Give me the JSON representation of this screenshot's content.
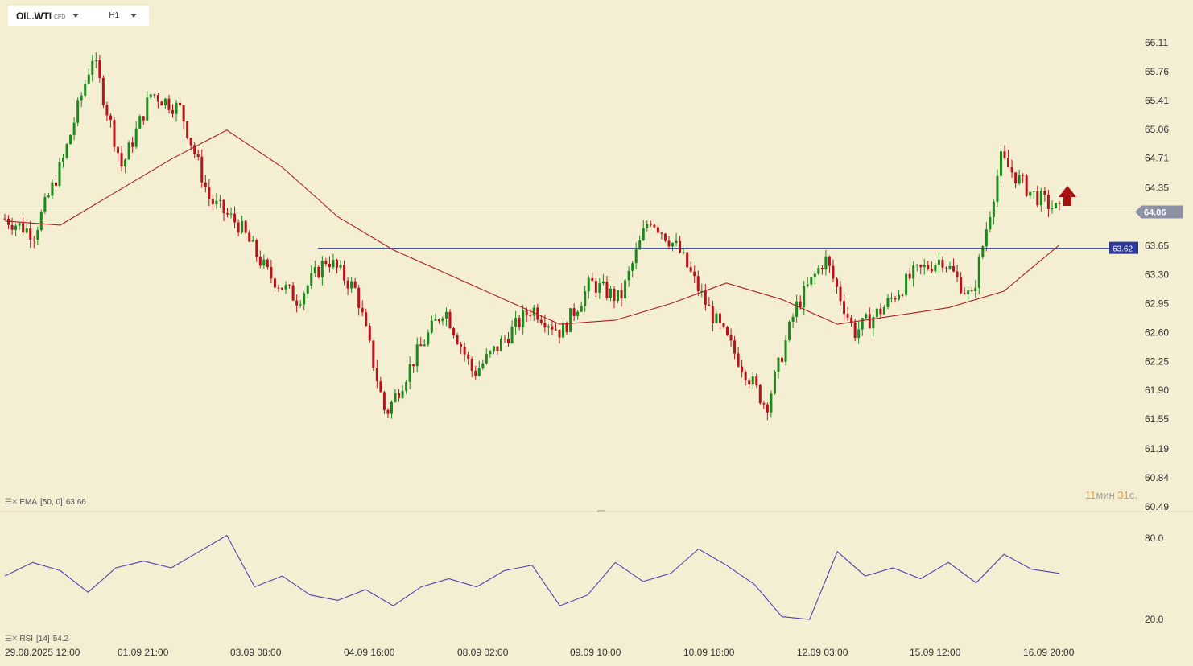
{
  "toolbar": {
    "symbol": "OIL.WTI",
    "symbol_tag": "CFD",
    "timeframe": "H1"
  },
  "price_axis": {
    "labels": [
      "66.11",
      "65.76",
      "65.41",
      "65.06",
      "64.71",
      "64.35",
      "64.06",
      "63.65",
      "63.30",
      "62.95",
      "62.60",
      "62.25",
      "61.90",
      "61.55",
      "61.19",
      "60.84",
      "60.49"
    ],
    "current_price": "64.06",
    "line_price": "63.62",
    "current_color": "#8c91a5",
    "line_color": "#2d3a9b"
  },
  "indicators": {
    "ema_label": "EMA",
    "ema_params": "[50, 0]",
    "ema_value": "63.66",
    "rsi_label": "RSI",
    "rsi_params": "[14]",
    "rsi_value": "54.2",
    "rsi_levels": [
      "80.0",
      "20.0"
    ]
  },
  "timer": {
    "minutes": "11",
    "min_unit": "мин",
    "seconds": "31",
    "sec_unit": "с."
  },
  "time_axis": [
    "29.08.2025   12:00",
    "01.09  21:00",
    "03.09  08:00",
    "04.09  16:00",
    "08.09  02:00",
    "09.09  10:00",
    "10.09  18:00",
    "12.09  03:00",
    "15.09  12:00",
    "16.09  20:00"
  ],
  "colors": {
    "up": "#1a8a1a",
    "down": "#b8131a",
    "ema": "#a82020",
    "rsi": "#5540b0",
    "arrow": "#a81010",
    "background": "#f4eed3"
  },
  "chart_data": [
    {
      "type": "candlestick",
      "instrument": "OIL.WTI",
      "timeframe": "H1",
      "y_range": [
        60.49,
        66.11
      ],
      "x_labels": [
        "29.08.2025 12:00",
        "01.09 21:00",
        "03.09 08:00",
        "04.09 16:00",
        "08.09 02:00",
        "09.09 10:00",
        "10.09 18:00",
        "12.09 03:00",
        "15.09 12:00",
        "16.09 20:00"
      ],
      "close_path": [
        {
          "x": "29.08.2025 12:00",
          "y": 63.98
        },
        {
          "x": "01.09 21:00",
          "y": 63.8
        },
        {
          "x": "01.09 21:00",
          "y": 64.7
        },
        {
          "x": "01.09 21:00",
          "y": 65.95
        },
        {
          "x": "01.09 21:00",
          "y": 64.6
        },
        {
          "x": "01.09 21:00",
          "y": 65.5
        },
        {
          "x": "03.09 08:00",
          "y": 65.3
        },
        {
          "x": "03.09 08:00",
          "y": 64.2
        },
        {
          "x": "03.09 08:00",
          "y": 63.9
        },
        {
          "x": "04.09 16:00",
          "y": 63.3
        },
        {
          "x": "04.09 16:00",
          "y": 63.0
        },
        {
          "x": "04.09 16:00",
          "y": 63.5
        },
        {
          "x": "04.09 16:00",
          "y": 63.1
        },
        {
          "x": "08.09 02:00",
          "y": 61.6
        },
        {
          "x": "08.09 02:00",
          "y": 62.3
        },
        {
          "x": "08.09 02:00",
          "y": 62.9
        },
        {
          "x": "08.09 02:00",
          "y": 62.1
        },
        {
          "x": "08.09 02:00",
          "y": 62.5
        },
        {
          "x": "09.09 10:00",
          "y": 62.9
        },
        {
          "x": "09.09 10:00",
          "y": 62.6
        },
        {
          "x": "09.09 10:00",
          "y": 63.2
        },
        {
          "x": "10.09 18:00",
          "y": 63.0
        },
        {
          "x": "10.09 18:00",
          "y": 64.0
        },
        {
          "x": "10.09 18:00",
          "y": 63.6
        },
        {
          "x": "10.09 18:00",
          "y": 62.9
        },
        {
          "x": "10.09 18:00",
          "y": 62.3
        },
        {
          "x": "12.09 03:00",
          "y": 61.7
        },
        {
          "x": "12.09 03:00",
          "y": 62.9
        },
        {
          "x": "12.09 03:00",
          "y": 63.5
        },
        {
          "x": "12.09 03:00",
          "y": 62.6
        },
        {
          "x": "15.09 12:00",
          "y": 62.9
        },
        {
          "x": "15.09 12:00",
          "y": 63.3
        },
        {
          "x": "15.09 12:00",
          "y": 63.5
        },
        {
          "x": "15.09 12:00",
          "y": 63.0
        },
        {
          "x": "16.09 20:00",
          "y": 64.7
        },
        {
          "x": "16.09 20:00",
          "y": 64.3
        },
        {
          "x": "16.09 20:00",
          "y": 64.06
        }
      ],
      "ema50": {
        "name": "EMA [50, 0]",
        "last": 63.66,
        "values": [
          63.95,
          63.9,
          64.3,
          64.7,
          65.05,
          64.6,
          64.0,
          63.6,
          63.3,
          63.0,
          62.7,
          62.75,
          62.95,
          63.2,
          63.0,
          62.7,
          62.8,
          62.9,
          63.1,
          63.66
        ]
      },
      "horizontal_lines": [
        64.06,
        63.62
      ],
      "annotation": "up-arrow"
    },
    {
      "type": "line",
      "name": "RSI [14]",
      "last": 54.2,
      "levels": [
        80.0,
        20.0
      ],
      "values": [
        52,
        62,
        56,
        40,
        58,
        63,
        58,
        70,
        82,
        44,
        52,
        38,
        34,
        42,
        30,
        44,
        50,
        44,
        56,
        60,
        30,
        38,
        62,
        48,
        54,
        72,
        60,
        46,
        22,
        20,
        70,
        52,
        58,
        50,
        62,
        47,
        68,
        57,
        54
      ]
    }
  ]
}
